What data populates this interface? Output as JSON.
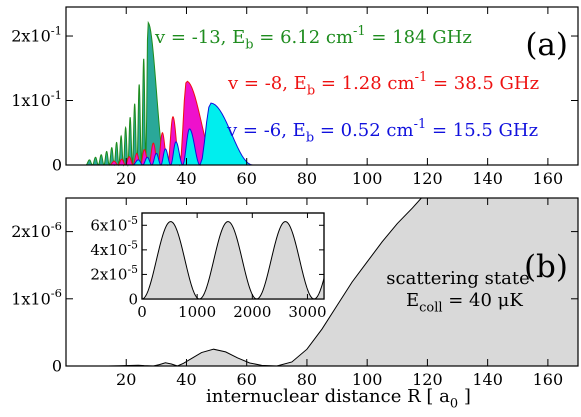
{
  "chart_data": [
    {
      "type": "area",
      "panel_label": "(a)",
      "xlim": [
        0,
        170
      ],
      "ylim": [
        0,
        0.245
      ],
      "x_ticks": [
        20,
        40,
        60,
        80,
        100,
        120,
        140,
        160
      ],
      "x_tick_labels": [
        "20",
        "40",
        "60",
        "80",
        "100",
        "120",
        "140",
        "160"
      ],
      "y_ticks": [
        0,
        0.1,
        0.2
      ],
      "y_tick_labels": [
        {
          "mantissa": "0",
          "exp": ""
        },
        {
          "mantissa": "1x10",
          "exp": "-1"
        },
        {
          "mantissa": "2x10",
          "exp": "-1"
        }
      ],
      "series": [
        {
          "name": "v = -13, E_b = 6.12 cm^-1 = 184 GHz",
          "label_parts": {
            "a": "v = -13, E",
            "sub": "b",
            "b": " = 6.12 cm",
            "sup": "-1",
            "c": " = 184 GHz"
          },
          "color": "#1e8c1e",
          "fill": "#2aa899",
          "lobe_peaks": [
            [
              7.8,
              0.008
            ],
            [
              9.8,
              0.012
            ],
            [
              11.7,
              0.016
            ],
            [
              13.5,
              0.021
            ],
            [
              15.2,
              0.027
            ],
            [
              16.8,
              0.035
            ],
            [
              18.3,
              0.045
            ],
            [
              19.8,
              0.058
            ],
            [
              21.3,
              0.074
            ],
            [
              22.8,
              0.095
            ],
            [
              24.3,
              0.125
            ],
            [
              25.8,
              0.165
            ],
            [
              27.2,
              0.221
            ]
          ],
          "tail_end": 33
        },
        {
          "name": "v = -8, E_b = 1.28 cm^-1 = 38.5 GHz",
          "label_parts": {
            "a": "v = -8, E",
            "sub": "b",
            "b": " = 1.28 cm",
            "sup": "-1",
            "c": " = 38.5 GHz"
          },
          "color": "#ee1111",
          "fill": "#ee11cc",
          "lobe_peaks": [
            [
              16.0,
              0.006
            ],
            [
              18.5,
              0.009
            ],
            [
              21.0,
              0.013
            ],
            [
              23.5,
              0.018
            ],
            [
              26.0,
              0.024
            ],
            [
              29.0,
              0.034
            ],
            [
              32.0,
              0.05
            ],
            [
              35.5,
              0.075
            ],
            [
              40.0,
              0.13
            ]
          ],
          "tail_end": 50
        },
        {
          "name": "v = -6, E_b = 0.52 cm^-1 = 15.5 GHz",
          "label_parts": {
            "a": "v = -6, E",
            "sub": "b",
            "b": " = 0.52 cm",
            "sup": "-1",
            "c": " = 15.5 GHz"
          },
          "color": "#1111dd",
          "fill": "#00eeee",
          "lobe_peaks": [
            [
              24.0,
              0.008
            ],
            [
              27.0,
              0.012
            ],
            [
              30.0,
              0.018
            ],
            [
              33.0,
              0.025
            ],
            [
              36.5,
              0.036
            ],
            [
              41.0,
              0.056
            ],
            [
              48.0,
              0.096
            ]
          ],
          "tail_end": 62
        }
      ]
    },
    {
      "type": "area",
      "panel_label": "(b)",
      "xlabel_parts": {
        "a": "internuclear distance R [ a",
        "sub": "0",
        "b": " ]"
      },
      "xlim": [
        0,
        170
      ],
      "ylim": [
        0,
        2.5e-06
      ],
      "x_ticks": [
        20,
        40,
        60,
        80,
        100,
        120,
        140,
        160
      ],
      "x_tick_labels": [
        "20",
        "40",
        "60",
        "80",
        "100",
        "120",
        "140",
        "160"
      ],
      "y_ticks": [
        0,
        1e-06,
        2e-06
      ],
      "y_tick_labels": [
        {
          "mantissa": "0",
          "exp": ""
        },
        {
          "mantissa": "1x10",
          "exp": "-6"
        },
        {
          "mantissa": "2x10",
          "exp": "-6"
        }
      ],
      "annotation_line1": "scattering state",
      "annotation_line2_parts": {
        "a": "E",
        "sub": "coll",
        "b": " = 40 μK"
      },
      "series": [
        {
          "name": "scattering state",
          "color": "#000000",
          "fill": "#d9d9d9",
          "points": [
            [
              14,
              0
            ],
            [
              18,
              3e-09
            ],
            [
              21,
              8e-09
            ],
            [
              24,
              1.2e-08
            ],
            [
              26,
              5e-09
            ],
            [
              29,
              0.0
            ],
            [
              31,
              2e-08
            ],
            [
              33,
              4.8e-08
            ],
            [
              35,
              3e-08
            ],
            [
              37,
              0.0
            ],
            [
              39,
              4e-08
            ],
            [
              42,
              1.2e-07
            ],
            [
              45,
              2e-07
            ],
            [
              49,
              2.5e-07
            ],
            [
              53,
              2.1e-07
            ],
            [
              57,
              1.2e-07
            ],
            [
              61,
              4.5e-08
            ],
            [
              65,
              1e-08
            ],
            [
              70,
              0.0
            ],
            [
              75,
              6e-08
            ],
            [
              80,
              2.5e-07
            ],
            [
              85,
              5.5e-07
            ],
            [
              90,
              9e-07
            ],
            [
              95,
              1.25e-06
            ],
            [
              100,
              1.55e-06
            ],
            [
              105,
              1.85e-06
            ],
            [
              110,
              2.12e-06
            ],
            [
              115,
              2.35e-06
            ],
            [
              118,
              2.5e-06
            ]
          ]
        }
      ],
      "inset": {
        "xlim": [
          0,
          3300
        ],
        "ylim": [
          0,
          7e-05
        ],
        "x_ticks": [
          0,
          1000,
          2000,
          3000
        ],
        "x_tick_labels": [
          "0",
          "1000",
          "2000",
          "3000"
        ],
        "y_ticks": [
          0,
          2e-05,
          4e-05,
          6e-05
        ],
        "y_tick_labels": [
          {
            "mantissa": "0",
            "exp": ""
          },
          {
            "mantissa": "2x10",
            "exp": "-5"
          },
          {
            "mantissa": "4x10",
            "exp": "-5"
          },
          {
            "mantissa": "6x10",
            "exp": "-5"
          }
        ],
        "amplitude": 6.3e-05,
        "period": 1040,
        "zeros": [
          0,
          1040,
          2080,
          3120
        ],
        "x_end": 3300
      }
    }
  ]
}
